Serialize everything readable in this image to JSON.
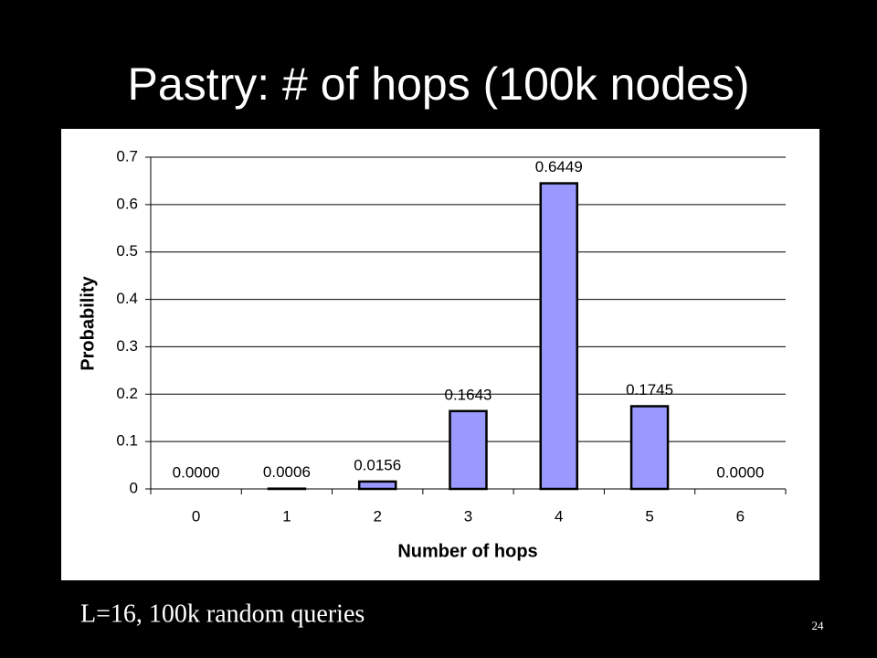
{
  "chart_data": {
    "type": "bar",
    "title": "Pastry: # of hops (100k nodes)",
    "x_label": "Number of hops",
    "y_label": "Probability",
    "categories": [
      "0",
      "1",
      "2",
      "3",
      "4",
      "5",
      "6"
    ],
    "values": [
      0,
      0.0006,
      0.0156,
      0.1643,
      0.6449,
      0.1745,
      0
    ],
    "value_labels": [
      "0.0000",
      "0.0006",
      "0.0156",
      "0.1643",
      "0.6449",
      "0.1745",
      "0.0000"
    ],
    "color": "#9999ff",
    "ylim": [
      0,
      0.7
    ],
    "yticks": [
      0,
      0.1,
      0.2,
      0.3,
      0.4,
      0.5,
      0.6,
      0.7
    ],
    "grid": true
  },
  "slide": {
    "caption": "L=16, 100k random queries",
    "page_number": "24"
  }
}
